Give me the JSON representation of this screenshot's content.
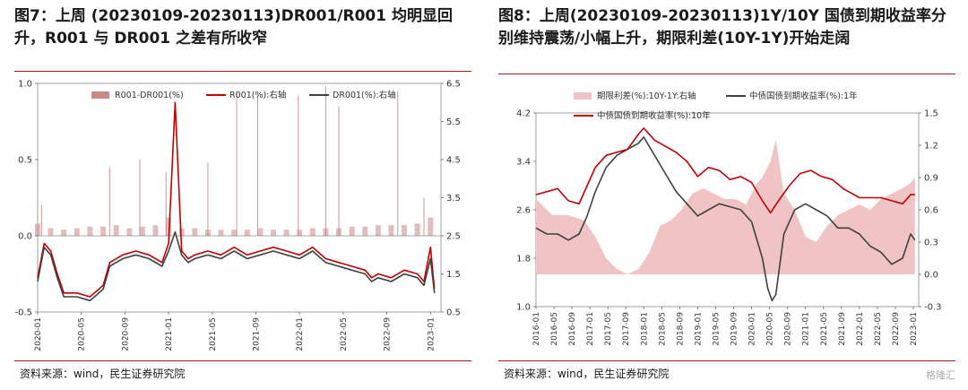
{
  "left": {
    "title": "图7：上周 (20230109-20230113)DR001/R001  均明显回升，R001 与 DR001 之差有所收窄",
    "source": "资料来源：wind，民生证券研究院"
  },
  "right": {
    "title": "图8：上周(20230109-20230113)1Y/10Y  国债到期收益率分别维持震荡/小幅上升，期限利差(10Y-1Y)开始走阔",
    "source": "资料来源：wind，民生证券研究院"
  },
  "watermark": "格隆汇",
  "colors": {
    "spread": "#c98a8a",
    "r001": "#c00000",
    "dr001": "#404040",
    "bar_right": "#f0c4c4",
    "y10": "#c00000",
    "y1": "#404040",
    "accent_rule": "#9b1c1c"
  },
  "chart_data": [
    {
      "type": "line",
      "legend": [
        "R001-DR001(%)",
        "R001(%):右轴",
        "DR001(%):右轴"
      ],
      "legend_position": "top",
      "grid": false,
      "x_ticks": [
        "2020-01",
        "2020-05",
        "2020-09",
        "2021-01",
        "2021-05",
        "2021-09",
        "2022-01",
        "2022-05",
        "2022-09",
        "2023-01"
      ],
      "y_left": {
        "ticks": [
          "1.0",
          "0.5",
          "0.0",
          "-0.5"
        ],
        "range": [
          -0.5,
          1.0
        ]
      },
      "y_right": {
        "ticks": [
          "6.5",
          "5.5",
          "4.5",
          "3.5",
          "2.5",
          "1.5",
          "0.5"
        ],
        "range": [
          0.5,
          6.5
        ]
      },
      "series": [
        {
          "name": "R001-DR001(%)",
          "axis": "left",
          "kind": "bar",
          "x": [
            2020.0,
            2020.1,
            2020.2,
            2020.3,
            2020.4,
            2020.5,
            2020.6,
            2020.7,
            2020.8,
            2020.9,
            2021.0,
            2021.1,
            2021.2,
            2021.3,
            2021.4,
            2021.5,
            2021.6,
            2021.7,
            2021.8,
            2021.9,
            2022.0,
            2022.1,
            2022.2,
            2022.3,
            2022.4,
            2022.5,
            2022.6,
            2022.7,
            2022.8,
            2022.9,
            2023.0
          ],
          "values": [
            0.08,
            0.05,
            0.04,
            0.05,
            0.06,
            0.06,
            0.07,
            0.05,
            0.06,
            0.07,
            0.12,
            0.05,
            0.05,
            0.04,
            0.04,
            0.04,
            0.04,
            0.05,
            0.04,
            0.04,
            0.04,
            0.05,
            0.05,
            0.05,
            0.06,
            0.06,
            0.07,
            0.07,
            0.07,
            0.08,
            0.12
          ]
        },
        {
          "name": "R001-DR001 spikes",
          "axis": "left",
          "kind": "spike",
          "x": [
            2020.03,
            2020.55,
            2020.78,
            2020.98,
            2021.3,
            2021.52,
            2021.68,
            2021.99,
            2022.2,
            2022.3,
            2022.75,
            2022.95
          ],
          "values": [
            0.2,
            0.45,
            0.5,
            0.42,
            0.48,
            0.95,
            0.92,
            0.92,
            0.98,
            0.85,
            0.95,
            0.25
          ]
        },
        {
          "name": "R001(%):右轴",
          "axis": "right",
          "x": [
            2020.0,
            2020.05,
            2020.1,
            2020.15,
            2020.2,
            2020.3,
            2020.4,
            2020.5,
            2020.55,
            2020.65,
            2020.75,
            2020.85,
            2020.95,
            2021.0,
            2021.05,
            2021.1,
            2021.15,
            2021.2,
            2021.3,
            2021.4,
            2021.5,
            2021.6,
            2021.7,
            2021.8,
            2021.9,
            2022.0,
            2022.1,
            2022.2,
            2022.3,
            2022.4,
            2022.5,
            2022.55,
            2022.6,
            2022.7,
            2022.8,
            2022.9,
            2022.95,
            2023.0,
            2023.03
          ],
          "values": [
            1.4,
            2.3,
            2.1,
            1.5,
            1.0,
            1.0,
            0.9,
            1.2,
            1.8,
            2.0,
            2.1,
            2.0,
            1.8,
            2.3,
            6.0,
            2.1,
            1.9,
            2.0,
            2.1,
            2.0,
            2.2,
            2.0,
            2.1,
            2.2,
            2.1,
            2.0,
            2.2,
            1.9,
            1.8,
            1.7,
            1.6,
            1.4,
            1.5,
            1.4,
            1.6,
            1.5,
            1.3,
            2.2,
            1.1
          ]
        },
        {
          "name": "DR001(%):右轴",
          "axis": "right",
          "x": [
            2020.0,
            2020.05,
            2020.1,
            2020.15,
            2020.2,
            2020.3,
            2020.4,
            2020.5,
            2020.55,
            2020.65,
            2020.75,
            2020.85,
            2020.95,
            2021.0,
            2021.05,
            2021.1,
            2021.15,
            2021.2,
            2021.3,
            2021.4,
            2021.5,
            2021.6,
            2021.7,
            2021.8,
            2021.9,
            2022.0,
            2022.1,
            2022.2,
            2022.3,
            2022.4,
            2022.5,
            2022.55,
            2022.6,
            2022.7,
            2022.8,
            2022.9,
            2022.95,
            2023.0,
            2023.03
          ],
          "values": [
            1.3,
            2.2,
            2.0,
            1.4,
            0.9,
            0.9,
            0.8,
            1.1,
            1.7,
            1.9,
            2.0,
            1.9,
            1.7,
            2.1,
            2.6,
            2.0,
            1.8,
            1.9,
            2.0,
            1.9,
            2.1,
            1.9,
            2.0,
            2.1,
            2.0,
            1.9,
            2.1,
            1.8,
            1.7,
            1.6,
            1.5,
            1.3,
            1.4,
            1.3,
            1.5,
            1.4,
            1.2,
            1.9,
            1.0
          ]
        }
      ]
    },
    {
      "type": "line",
      "legend": [
        "期限利差(%):10Y-1Y:右轴",
        "中债国债到期收益率(%):1年",
        "中债国债到期收益率(%):10年"
      ],
      "legend_position": "top",
      "grid": false,
      "x_ticks": [
        "2016-01",
        "2016-05",
        "2016-09",
        "2017-01",
        "2017-05",
        "2017-09",
        "2018-01",
        "2018-05",
        "2018-09",
        "2019-01",
        "2019-05",
        "2019-09",
        "2020-01",
        "2020-05",
        "2020-09",
        "2021-01",
        "2021-05",
        "2021-09",
        "2022-01",
        "2022-05",
        "2022-09",
        "2023-01"
      ],
      "y_left": {
        "ticks": [
          "4.2",
          "3.4",
          "2.6",
          "1.8",
          "1.0"
        ],
        "range": [
          1.0,
          4.2
        ]
      },
      "y_right": {
        "ticks": [
          "1.5",
          "1.2",
          "0.9",
          "0.6",
          "0.3",
          "0.0",
          "-0.3"
        ],
        "range": [
          -0.3,
          1.5
        ]
      },
      "series": [
        {
          "name": "期限利差(%):10Y-1Y:右轴",
          "axis": "right",
          "kind": "area",
          "x": [
            2016.0,
            2016.3,
            2016.6,
            2016.9,
            2017.1,
            2017.3,
            2017.5,
            2017.7,
            2017.9,
            2018.1,
            2018.3,
            2018.5,
            2018.7,
            2018.9,
            2019.1,
            2019.3,
            2019.5,
            2019.7,
            2019.9,
            2020.1,
            2020.2,
            2020.35,
            2020.45,
            2020.6,
            2020.8,
            2021.0,
            2021.2,
            2021.4,
            2021.6,
            2021.8,
            2022.0,
            2022.2,
            2022.4,
            2022.6,
            2022.8,
            2022.95,
            2023.03
          ],
          "values": [
            0.7,
            0.55,
            0.55,
            0.5,
            0.35,
            0.15,
            0.05,
            0.0,
            0.05,
            0.2,
            0.45,
            0.5,
            0.6,
            0.75,
            0.8,
            0.75,
            0.7,
            0.7,
            0.65,
            0.85,
            0.9,
            1.05,
            1.25,
            0.75,
            0.6,
            0.35,
            0.3,
            0.45,
            0.55,
            0.6,
            0.65,
            0.6,
            0.7,
            0.75,
            0.8,
            0.85,
            0.9
          ]
        },
        {
          "name": "中债国债到期收益率(%):1年",
          "axis": "left",
          "x": [
            2016.0,
            2016.2,
            2016.4,
            2016.6,
            2016.8,
            2016.95,
            2017.1,
            2017.3,
            2017.5,
            2017.7,
            2017.9,
            2018.0,
            2018.2,
            2018.4,
            2018.6,
            2018.8,
            2019.0,
            2019.2,
            2019.4,
            2019.6,
            2019.8,
            2020.0,
            2020.2,
            2020.3,
            2020.38,
            2020.45,
            2020.6,
            2020.8,
            2021.0,
            2021.2,
            2021.4,
            2021.6,
            2021.8,
            2022.0,
            2022.2,
            2022.4,
            2022.6,
            2022.8,
            2022.95,
            2023.03
          ],
          "values": [
            2.3,
            2.2,
            2.2,
            2.1,
            2.2,
            2.5,
            2.9,
            3.3,
            3.5,
            3.6,
            3.7,
            3.8,
            3.5,
            3.2,
            2.9,
            2.7,
            2.5,
            2.6,
            2.7,
            2.65,
            2.6,
            2.4,
            1.8,
            1.3,
            1.1,
            1.2,
            2.2,
            2.6,
            2.7,
            2.6,
            2.5,
            2.3,
            2.3,
            2.2,
            2.0,
            1.9,
            1.7,
            1.8,
            2.2,
            2.1
          ]
        },
        {
          "name": "中债国债到期收益率(%):10年",
          "axis": "left",
          "x": [
            2016.0,
            2016.2,
            2016.4,
            2016.6,
            2016.8,
            2016.95,
            2017.1,
            2017.3,
            2017.5,
            2017.7,
            2017.9,
            2018.0,
            2018.2,
            2018.4,
            2018.6,
            2018.8,
            2019.0,
            2019.2,
            2019.4,
            2019.6,
            2019.8,
            2020.0,
            2020.2,
            2020.35,
            2020.5,
            2020.7,
            2020.9,
            2021.1,
            2021.3,
            2021.5,
            2021.7,
            2021.9,
            2022.0,
            2022.2,
            2022.4,
            2022.6,
            2022.8,
            2022.95,
            2023.03
          ],
          "values": [
            2.85,
            2.9,
            2.95,
            2.75,
            2.7,
            3.0,
            3.3,
            3.5,
            3.55,
            3.6,
            3.85,
            3.95,
            3.75,
            3.65,
            3.55,
            3.4,
            3.15,
            3.3,
            3.25,
            3.1,
            3.15,
            3.05,
            2.75,
            2.55,
            2.75,
            3.0,
            3.2,
            3.25,
            3.15,
            3.1,
            2.95,
            2.85,
            2.8,
            2.8,
            2.8,
            2.75,
            2.7,
            2.85,
            2.85
          ]
        }
      ]
    }
  ]
}
